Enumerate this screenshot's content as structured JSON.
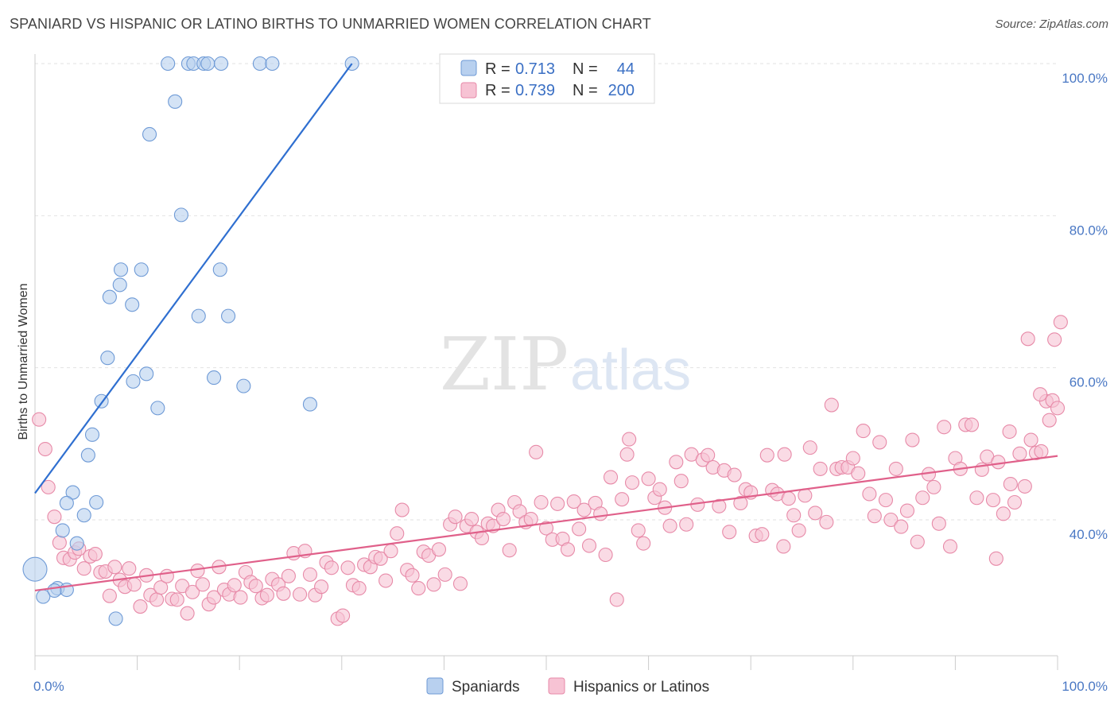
{
  "title": "SPANIARD VS HISPANIC OR LATINO BIRTHS TO UNMARRIED WOMEN CORRELATION CHART",
  "source": "Source: ZipAtlas.com",
  "watermark": {
    "zip": "ZIP",
    "atlas": "atlas"
  },
  "colors": {
    "blue_fill": "#b8d0ef",
    "blue_stroke": "#6e9ad6",
    "blue_line": "#2f6fd0",
    "pink_fill": "#f7c3d4",
    "pink_stroke": "#e78aa8",
    "pink_line": "#e0608a",
    "axis_label": "#4a78c4",
    "grid": "#e2e2e2"
  },
  "legend": {
    "rows": [
      {
        "r_label": "R =",
        "r_value": "0.713",
        "n_label": "N =",
        "n_value": "44",
        "series": "Spaniards"
      },
      {
        "r_label": "R =",
        "r_value": "0.739",
        "n_label": "N =",
        "n_value": "200",
        "series": "Hispanics or Latinos"
      }
    ]
  },
  "chart_data": {
    "type": "scatter",
    "xlabel": "",
    "ylabel": "Births to Unmarried Women",
    "x_tick_labels": [
      "0.0%",
      "100.0%"
    ],
    "y_tick_labels": [
      "100.0%",
      "80.0%",
      "60.0%",
      "40.0%"
    ],
    "xlim": [
      0,
      100
    ],
    "ylim": [
      20,
      102
    ],
    "grid": true,
    "legend_position": "top-center",
    "series": [
      {
        "name": "Spaniards",
        "color": "#b8d0ef",
        "trend": {
          "x0": 0,
          "y0": 43.5,
          "x1": 31,
          "y1": 100
        },
        "points": [
          [
            13,
            100
          ],
          [
            15,
            100
          ],
          [
            15.5,
            100
          ],
          [
            16.5,
            100
          ],
          [
            16.9,
            100
          ],
          [
            18.2,
            100
          ],
          [
            22,
            100
          ],
          [
            23.2,
            100
          ],
          [
            31,
            100
          ],
          [
            13.7,
            95
          ],
          [
            11.2,
            90.7
          ],
          [
            14.3,
            80.1
          ],
          [
            8.4,
            72.9
          ],
          [
            10.4,
            72.9
          ],
          [
            18.1,
            72.9
          ],
          [
            8.3,
            70.9
          ],
          [
            7.3,
            69.3
          ],
          [
            9.5,
            68.3
          ],
          [
            16,
            66.8
          ],
          [
            18.9,
            66.8
          ],
          [
            7.1,
            61.3
          ],
          [
            10.9,
            59.2
          ],
          [
            17.5,
            58.7
          ],
          [
            9.6,
            58.2
          ],
          [
            20.4,
            57.6
          ],
          [
            6.5,
            55.6
          ],
          [
            12,
            54.7
          ],
          [
            26.9,
            55.2
          ],
          [
            5.6,
            51.2
          ],
          [
            5.2,
            48.5
          ],
          [
            3.7,
            43.6
          ],
          [
            6,
            42.3
          ],
          [
            3.1,
            42.2
          ],
          [
            4.8,
            40.6
          ],
          [
            2.7,
            38.6
          ],
          [
            4.1,
            36.9
          ],
          [
            0,
            33.5
          ],
          [
            2.2,
            31
          ],
          [
            3.1,
            30.8
          ],
          [
            1.9,
            30.7
          ],
          [
            0.8,
            29.9
          ],
          [
            7.9,
            27
          ]
        ],
        "big_points": [
          [
            0,
            33.5,
            15
          ]
        ]
      },
      {
        "name": "Hispanics or Latinos",
        "color": "#f7c3d4",
        "trend": {
          "x0": 0,
          "y0": 30.7,
          "x1": 100,
          "y1": 48.4
        },
        "points": [
          [
            0.4,
            53.2
          ],
          [
            1,
            49.3
          ],
          [
            1.3,
            44.3
          ],
          [
            1.9,
            40.4
          ],
          [
            2.4,
            37
          ],
          [
            2.8,
            35
          ],
          [
            3.4,
            34.8
          ],
          [
            3.9,
            35.7
          ],
          [
            4.3,
            36.2
          ],
          [
            4.8,
            33.6
          ],
          [
            5.4,
            35.2
          ],
          [
            5.9,
            35.5
          ],
          [
            6.4,
            33.1
          ],
          [
            6.9,
            33.2
          ],
          [
            7.3,
            30
          ],
          [
            7.8,
            33.8
          ],
          [
            8.3,
            32.1
          ],
          [
            8.8,
            31.2
          ],
          [
            9.2,
            33.6
          ],
          [
            9.7,
            31.5
          ],
          [
            10.3,
            28.6
          ],
          [
            10.9,
            32.7
          ],
          [
            11.3,
            30.1
          ],
          [
            11.9,
            29.5
          ],
          [
            12.3,
            31.1
          ],
          [
            12.9,
            32.6
          ],
          [
            13.4,
            29.6
          ],
          [
            13.9,
            29.5
          ],
          [
            14.4,
            31.3
          ],
          [
            14.9,
            27.7
          ],
          [
            15.4,
            30.5
          ],
          [
            15.9,
            33.3
          ],
          [
            16.4,
            31.5
          ],
          [
            17,
            28.9
          ],
          [
            17.5,
            29.8
          ],
          [
            18,
            33.8
          ],
          [
            18.5,
            30.8
          ],
          [
            19,
            30.2
          ],
          [
            19.5,
            31.4
          ],
          [
            20.1,
            29.8
          ],
          [
            20.6,
            33.1
          ],
          [
            21.1,
            31.8
          ],
          [
            21.6,
            31.3
          ],
          [
            22.2,
            29.7
          ],
          [
            22.7,
            30.1
          ],
          [
            23.2,
            32.2
          ],
          [
            23.8,
            31.5
          ],
          [
            24.3,
            30.3
          ],
          [
            24.8,
            32.6
          ],
          [
            25.3,
            35.6
          ],
          [
            25.9,
            30.2
          ],
          [
            26.4,
            35.9
          ],
          [
            26.9,
            32.8
          ],
          [
            27.4,
            30.1
          ],
          [
            28,
            31.2
          ],
          [
            28.5,
            34.4
          ],
          [
            29,
            33.7
          ],
          [
            29.6,
            27
          ],
          [
            30.1,
            27.4
          ],
          [
            30.6,
            33.7
          ],
          [
            31.1,
            31.4
          ],
          [
            31.7,
            31
          ],
          [
            32.2,
            34.1
          ],
          [
            32.8,
            33.8
          ],
          [
            33.3,
            35.1
          ],
          [
            33.8,
            34.9
          ],
          [
            34.3,
            32
          ],
          [
            34.8,
            35.9
          ],
          [
            35.4,
            38.2
          ],
          [
            35.9,
            41.3
          ],
          [
            36.4,
            33.4
          ],
          [
            36.9,
            32.7
          ],
          [
            37.5,
            31
          ],
          [
            38,
            35.8
          ],
          [
            38.5,
            35.3
          ],
          [
            39,
            31.5
          ],
          [
            39.5,
            36.1
          ],
          [
            40.1,
            32.8
          ],
          [
            40.6,
            39.4
          ],
          [
            41.1,
            40.4
          ],
          [
            41.6,
            31.6
          ],
          [
            42.2,
            39.2
          ],
          [
            42.7,
            40.1
          ],
          [
            43.2,
            38.4
          ],
          [
            43.7,
            37.6
          ],
          [
            44.3,
            39.5
          ],
          [
            44.8,
            39.2
          ],
          [
            45.3,
            41.3
          ],
          [
            45.8,
            40.1
          ],
          [
            46.4,
            36
          ],
          [
            46.9,
            42.3
          ],
          [
            47.4,
            41.1
          ],
          [
            48,
            39.7
          ],
          [
            48.5,
            40.1
          ],
          [
            49,
            48.9
          ],
          [
            49.5,
            42.3
          ],
          [
            50,
            38.9
          ],
          [
            50.6,
            37.4
          ],
          [
            51.1,
            42.1
          ],
          [
            51.6,
            37.5
          ],
          [
            52.1,
            36.1
          ],
          [
            52.7,
            42.4
          ],
          [
            53.2,
            38.8
          ],
          [
            53.7,
            41.3
          ],
          [
            54.2,
            36.6
          ],
          [
            54.8,
            42.2
          ],
          [
            55.3,
            40.8
          ],
          [
            55.8,
            35.4
          ],
          [
            56.3,
            45.6
          ],
          [
            56.9,
            29.5
          ],
          [
            57.4,
            42.7
          ],
          [
            57.9,
            48.6
          ],
          [
            58.4,
            44.9
          ],
          [
            59,
            38.6
          ],
          [
            59.5,
            36.9
          ],
          [
            60,
            45.4
          ],
          [
            60.6,
            42.9
          ],
          [
            61.1,
            44
          ],
          [
            61.6,
            41.6
          ],
          [
            62.1,
            39.2
          ],
          [
            62.7,
            47.6
          ],
          [
            63.2,
            45.1
          ],
          [
            63.7,
            39.4
          ],
          [
            64.2,
            48.6
          ],
          [
            64.8,
            42
          ],
          [
            65.3,
            47.9
          ],
          [
            65.8,
            48.5
          ],
          [
            66.3,
            46.9
          ],
          [
            66.9,
            41.8
          ],
          [
            67.4,
            46.5
          ],
          [
            67.9,
            38.4
          ],
          [
            68.4,
            45.9
          ],
          [
            69,
            42.2
          ],
          [
            69.5,
            44
          ],
          [
            70,
            43.6
          ],
          [
            70.5,
            37.9
          ],
          [
            71.1,
            38.1
          ],
          [
            71.6,
            48.5
          ],
          [
            72.1,
            43.9
          ],
          [
            72.6,
            43.4
          ],
          [
            73.2,
            36.5
          ],
          [
            73.7,
            42.8
          ],
          [
            74.2,
            40.6
          ],
          [
            74.7,
            38.6
          ],
          [
            75.3,
            43.2
          ],
          [
            75.8,
            49.5
          ],
          [
            76.3,
            40.9
          ],
          [
            76.8,
            46.7
          ],
          [
            77.4,
            39.7
          ],
          [
            77.9,
            55.1
          ],
          [
            78.4,
            46.7
          ],
          [
            78.9,
            46.9
          ],
          [
            79.5,
            46.9
          ],
          [
            80,
            48.1
          ],
          [
            80.5,
            46.1
          ],
          [
            81,
            51.7
          ],
          [
            81.6,
            43.4
          ],
          [
            82.1,
            40.5
          ],
          [
            82.6,
            50.2
          ],
          [
            83.2,
            42.6
          ],
          [
            83.7,
            40
          ],
          [
            84.2,
            46.7
          ],
          [
            84.7,
            39.1
          ],
          [
            85.3,
            41.2
          ],
          [
            85.8,
            50.5
          ],
          [
            86.3,
            37.1
          ],
          [
            86.8,
            42.9
          ],
          [
            87.4,
            46
          ],
          [
            87.9,
            44.3
          ],
          [
            88.4,
            39.5
          ],
          [
            88.9,
            52.2
          ],
          [
            89.5,
            36.5
          ],
          [
            90,
            48.1
          ],
          [
            90.5,
            46.7
          ],
          [
            91,
            52.5
          ],
          [
            91.6,
            52.5
          ],
          [
            92.1,
            42.9
          ],
          [
            92.6,
            46.6
          ],
          [
            93.1,
            48.3
          ],
          [
            93.7,
            42.6
          ],
          [
            94.2,
            47.6
          ],
          [
            94.7,
            40.8
          ],
          [
            95.3,
            51.6
          ],
          [
            95.8,
            42.3
          ],
          [
            96.3,
            48.7
          ],
          [
            96.8,
            44.4
          ],
          [
            97.4,
            50.5
          ],
          [
            97.9,
            48.8
          ],
          [
            98.4,
            49
          ],
          [
            98.9,
            55.6
          ],
          [
            99.5,
            55.7
          ],
          [
            100,
            54.7
          ],
          [
            97.1,
            63.8
          ],
          [
            98.3,
            56.5
          ],
          [
            95.4,
            44.7
          ],
          [
            94,
            34.9
          ],
          [
            73.3,
            48.6
          ],
          [
            58.1,
            50.6
          ],
          [
            99.2,
            53.1
          ],
          [
            99.7,
            63.7
          ],
          [
            100.3,
            66
          ]
        ]
      }
    ]
  },
  "bottom_legend": [
    {
      "label": "Spaniards"
    },
    {
      "label": "Hispanics or Latinos"
    }
  ]
}
